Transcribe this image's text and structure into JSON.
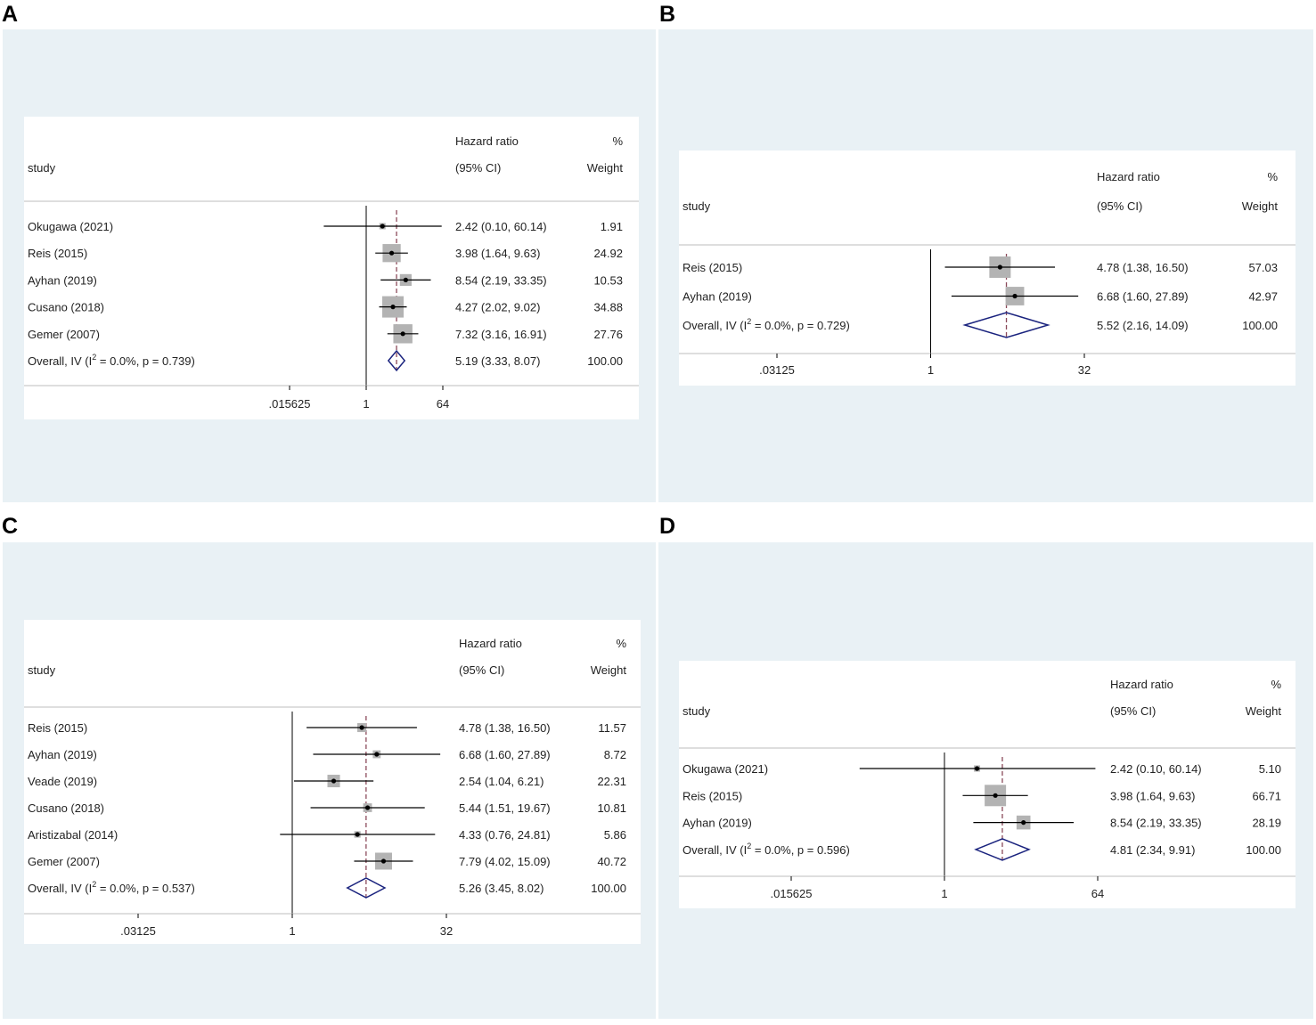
{
  "chart_data": [
    {
      "type": "forest",
      "panel_label": "A",
      "header": {
        "study": "study",
        "effect_line1": "Hazard ratio",
        "effect_line2": "(95% CI)",
        "weight_line1": "%",
        "weight_line2": "Weight"
      },
      "xscale": "log2",
      "xticks": [
        0.015625,
        1,
        64
      ],
      "xtick_labels": [
        ".015625",
        "1",
        "64"
      ],
      "studies": [
        {
          "name": "Okugawa (2021)",
          "hr": 2.42,
          "lo": 0.1,
          "hi": 60.14,
          "ci_text": "2.42 (0.10, 60.14)",
          "weight": "1.91"
        },
        {
          "name": "Reis (2015)",
          "hr": 3.98,
          "lo": 1.64,
          "hi": 9.63,
          "ci_text": "3.98 (1.64, 9.63)",
          "weight": "24.92"
        },
        {
          "name": "Ayhan (2019)",
          "hr": 8.54,
          "lo": 2.19,
          "hi": 33.35,
          "ci_text": "8.54 (2.19, 33.35)",
          "weight": "10.53"
        },
        {
          "name": "Cusano (2018)",
          "hr": 4.27,
          "lo": 2.02,
          "hi": 9.02,
          "ci_text": "4.27 (2.02, 9.02)",
          "weight": "34.88"
        },
        {
          "name": "Gemer (2007)",
          "hr": 7.32,
          "lo": 3.16,
          "hi": 16.91,
          "ci_text": "7.32 (3.16, 16.91)",
          "weight": "27.76"
        }
      ],
      "overall": {
        "label_pre": "Overall, IV (I",
        "label_sup": "2",
        "label_post": " = 0.0%, p = 0.739)",
        "hr": 5.19,
        "lo": 3.33,
        "hi": 8.07,
        "ci_text": "5.19 (3.33, 8.07)",
        "weight": "100.00"
      }
    },
    {
      "type": "forest",
      "panel_label": "B",
      "header": {
        "study": "study",
        "effect_line1": "Hazard ratio",
        "effect_line2": "(95% CI)",
        "weight_line1": "%",
        "weight_line2": "Weight"
      },
      "xscale": "log2",
      "xticks": [
        0.03125,
        1,
        32
      ],
      "xtick_labels": [
        ".03125",
        "1",
        "32"
      ],
      "studies": [
        {
          "name": "Reis (2015)",
          "hr": 4.78,
          "lo": 1.38,
          "hi": 16.5,
          "ci_text": "4.78 (1.38, 16.50)",
          "weight": "57.03"
        },
        {
          "name": "Ayhan (2019)",
          "hr": 6.68,
          "lo": 1.6,
          "hi": 27.89,
          "ci_text": "6.68 (1.60, 27.89)",
          "weight": "42.97"
        }
      ],
      "overall": {
        "label_pre": "Overall, IV (I",
        "label_sup": "2",
        "label_post": " = 0.0%, p = 0.729)",
        "hr": 5.52,
        "lo": 2.16,
        "hi": 14.09,
        "ci_text": "5.52 (2.16, 14.09)",
        "weight": "100.00"
      }
    },
    {
      "type": "forest",
      "panel_label": "C",
      "header": {
        "study": "study",
        "effect_line1": "Hazard ratio",
        "effect_line2": "(95% CI)",
        "weight_line1": "%",
        "weight_line2": "Weight"
      },
      "xscale": "log2",
      "xticks": [
        0.03125,
        1,
        32
      ],
      "xtick_labels": [
        ".03125",
        "1",
        "32"
      ],
      "studies": [
        {
          "name": "Reis (2015)",
          "hr": 4.78,
          "lo": 1.38,
          "hi": 16.5,
          "ci_text": "4.78 (1.38, 16.50)",
          "weight": "11.57"
        },
        {
          "name": "Ayhan (2019)",
          "hr": 6.68,
          "lo": 1.6,
          "hi": 27.89,
          "ci_text": "6.68 (1.60, 27.89)",
          "weight": "8.72"
        },
        {
          "name": "Veade (2019)",
          "hr": 2.54,
          "lo": 1.04,
          "hi": 6.21,
          "ci_text": "2.54 (1.04, 6.21)",
          "weight": "22.31"
        },
        {
          "name": "Cusano (2018)",
          "hr": 5.44,
          "lo": 1.51,
          "hi": 19.67,
          "ci_text": "5.44 (1.51, 19.67)",
          "weight": "10.81"
        },
        {
          "name": "Aristizabal (2014)",
          "hr": 4.33,
          "lo": 0.76,
          "hi": 24.81,
          "ci_text": "4.33 (0.76, 24.81)",
          "weight": "5.86"
        },
        {
          "name": "Gemer (2007)",
          "hr": 7.79,
          "lo": 4.02,
          "hi": 15.09,
          "ci_text": "7.79 (4.02, 15.09)",
          "weight": "40.72"
        }
      ],
      "overall": {
        "label_pre": "Overall, IV (I",
        "label_sup": "2",
        "label_post": " = 0.0%, p = 0.537)",
        "hr": 5.26,
        "lo": 3.45,
        "hi": 8.02,
        "ci_text": "5.26 (3.45, 8.02)",
        "weight": "100.00"
      }
    },
    {
      "type": "forest",
      "panel_label": "D",
      "header": {
        "study": "study",
        "effect_line1": "Hazard ratio",
        "effect_line2": "(95% CI)",
        "weight_line1": "%",
        "weight_line2": "Weight"
      },
      "xscale": "log2",
      "xticks": [
        0.015625,
        1,
        64
      ],
      "xtick_labels": [
        ".015625",
        "1",
        "64"
      ],
      "studies": [
        {
          "name": "Okugawa (2021)",
          "hr": 2.42,
          "lo": 0.1,
          "hi": 60.14,
          "ci_text": "2.42 (0.10, 60.14)",
          "weight": "5.10"
        },
        {
          "name": "Reis (2015)",
          "hr": 3.98,
          "lo": 1.64,
          "hi": 9.63,
          "ci_text": "3.98 (1.64, 9.63)",
          "weight": "66.71"
        },
        {
          "name": "Ayhan (2019)",
          "hr": 8.54,
          "lo": 2.19,
          "hi": 33.35,
          "ci_text": "8.54 (2.19, 33.35)",
          "weight": "28.19"
        }
      ],
      "overall": {
        "label_pre": "Overall, IV (I",
        "label_sup": "2",
        "label_post": " = 0.0%, p = 0.596)",
        "hr": 4.81,
        "lo": 2.34,
        "hi": 9.91,
        "ci_text": "4.81 (2.34, 9.91)",
        "weight": "100.00"
      }
    }
  ],
  "colors": {
    "panel_bg": "#e9f1f5",
    "plot_bg": "#ffffff",
    "square": "#b3b3b3",
    "diamond": "#1a237e",
    "ref_line": "#8b4a5a",
    "line": "#000000"
  }
}
